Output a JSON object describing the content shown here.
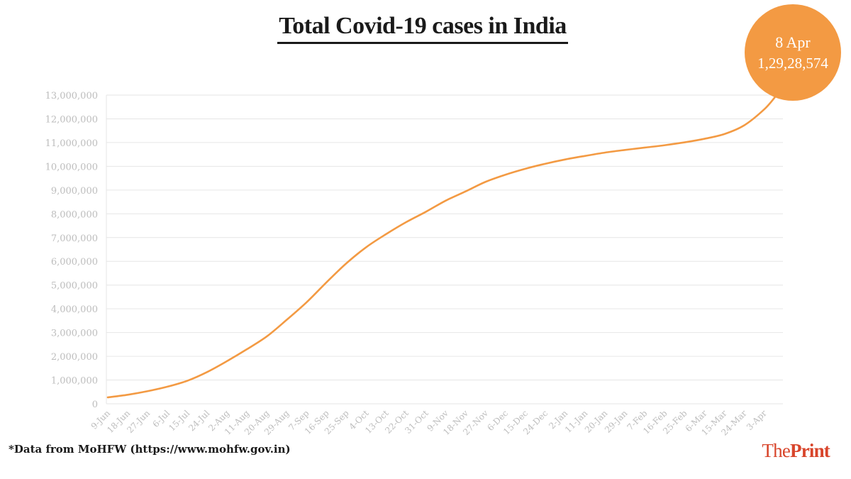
{
  "header": {
    "title": "Total Covid-19 cases in India"
  },
  "badge": {
    "date": "8 Apr",
    "value": "1,29,28,574"
  },
  "footnote": "*Data from MoHFW (https://www.mohfw.gov.in)",
  "brand": {
    "pre": "The",
    "main": "Print"
  },
  "colors": {
    "line": "#f39a43",
    "grid": "#e6e6e6",
    "tick": "#bdbdbd",
    "accent": "#f39a43"
  },
  "chart_data": {
    "type": "line",
    "title": "Total Covid-19 cases in India",
    "xlabel": "",
    "ylabel": "",
    "ylim": [
      0,
      13000000
    ],
    "yticks": [
      0,
      1000000,
      2000000,
      3000000,
      4000000,
      5000000,
      6000000,
      7000000,
      8000000,
      9000000,
      10000000,
      11000000,
      12000000,
      13000000
    ],
    "ytick_labels": [
      "0",
      "1,000,000",
      "2,000,000",
      "3,000,000",
      "4,000,000",
      "5,000,000",
      "6,000,000",
      "7,000,000",
      "8,000,000",
      "9,000,000",
      "10,000,000",
      "11,000,000",
      "12,000,000",
      "13,000,000"
    ],
    "xtick_labels": [
      "9-Jun",
      "18-Jun",
      "27-Jun",
      "6-Jul",
      "15-Jul",
      "24-Jul",
      "2-Aug",
      "11-Aug",
      "20-Aug",
      "29-Aug",
      "7-Sep",
      "16-Sep",
      "25-Sep",
      "4-Oct",
      "13-Oct",
      "22-Oct",
      "31-Oct",
      "9-Nov",
      "18-Nov",
      "27-Nov",
      "6-Dec",
      "15-Dec",
      "24-Dec",
      "2-Jan",
      "11-Jan",
      "20-Jan",
      "29-Jan",
      "7-Feb",
      "16-Feb",
      "25-Feb",
      "6-Mar",
      "15-Mar",
      "24-Mar",
      "3-Apr"
    ],
    "grid": true,
    "legend": "none",
    "series": [
      {
        "x": [
          "9-Jun",
          "18-Jun",
          "27-Jun",
          "6-Jul",
          "15-Jul",
          "24-Jul",
          "2-Aug",
          "11-Aug",
          "20-Aug",
          "29-Aug",
          "7-Sep",
          "16-Sep",
          "25-Sep",
          "4-Oct",
          "13-Oct",
          "22-Oct",
          "31-Oct",
          "9-Nov",
          "18-Nov",
          "27-Nov",
          "6-Dec",
          "15-Dec",
          "24-Dec",
          "2-Jan",
          "11-Jan",
          "20-Jan",
          "29-Jan",
          "7-Feb",
          "16-Feb",
          "25-Feb",
          "6-Mar",
          "15-Mar",
          "24-Mar",
          "3-Apr",
          "8-Apr"
        ],
        "values": [
          270000,
          380000,
          530000,
          720000,
          970000,
          1340000,
          1800000,
          2300000,
          2840000,
          3540000,
          4280000,
          5120000,
          5920000,
          6600000,
          7150000,
          7650000,
          8090000,
          8560000,
          8950000,
          9350000,
          9650000,
          9900000,
          10110000,
          10290000,
          10440000,
          10580000,
          10690000,
          10790000,
          10890000,
          11010000,
          11160000,
          11360000,
          11730000,
          12400000,
          12928574
        ]
      }
    ]
  }
}
